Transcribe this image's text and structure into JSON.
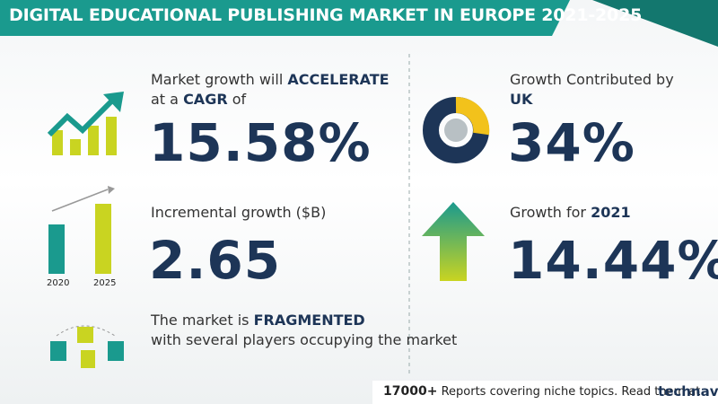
{
  "header": {
    "title": "DIGITAL EDUCATIONAL PUBLISHING MARKET IN EUROPE 2021-2025"
  },
  "panels": [
    {
      "label": [
        "Market growth will ",
        "ACCELERATE",
        "at a ",
        "CAGR",
        "  of"
      ],
      "value": "15.58%"
    },
    {
      "label": "Incremental growth ($B)",
      "value": "2.65",
      "years": [
        "2020",
        "2025"
      ]
    },
    {
      "label": [
        "The market is ",
        "FRAGMENTED",
        "with several players occupying the market"
      ]
    },
    {
      "label": [
        "Growth Contributed by",
        "UK"
      ],
      "value": "34%"
    },
    {
      "label": [
        "Growth for  ",
        "2021"
      ],
      "value": "14.44%"
    }
  ],
  "footer": {
    "count": "17000+",
    "text": "Reports covering niche topics. Read them at",
    "brand": "technavio"
  }
}
